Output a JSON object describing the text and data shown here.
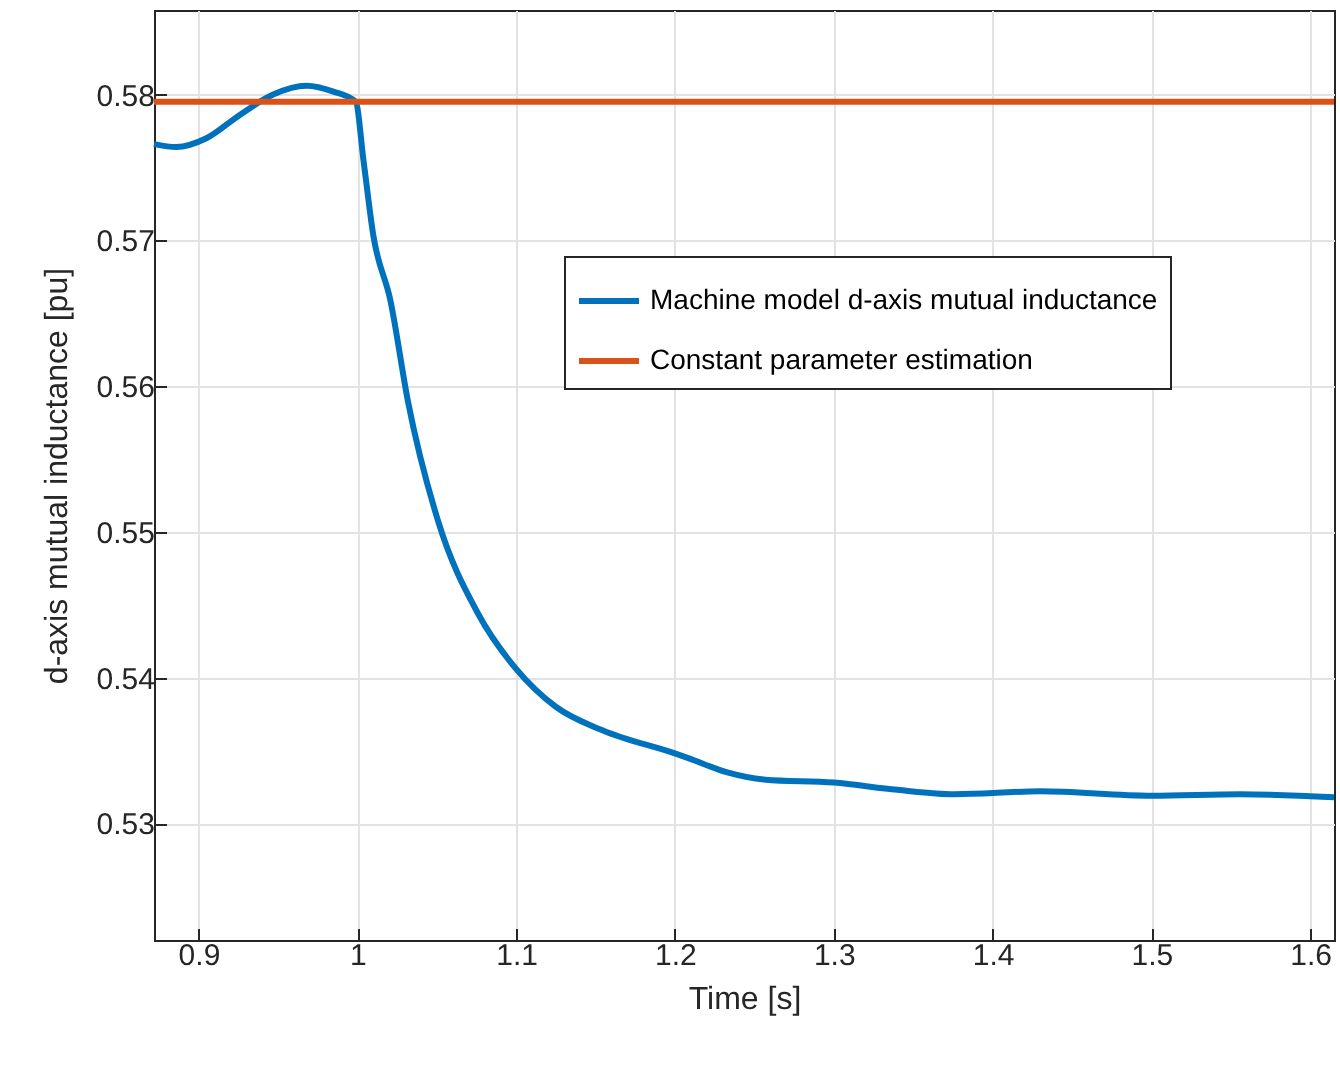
{
  "chart_data": {
    "type": "line",
    "xlabel": "Time [s]",
    "ylabel": "d-axis mutual inductance [pu]",
    "xlim": [
      0.872,
      1.615
    ],
    "ylim": [
      0.522,
      0.5858
    ],
    "xticks": [
      0.9,
      1,
      1.1,
      1.2,
      1.3,
      1.4,
      1.5,
      1.6
    ],
    "yticks": [
      0.53,
      0.54,
      0.55,
      0.56,
      0.57,
      0.58
    ],
    "grid": true,
    "legend": "top right",
    "line_style": "solid",
    "marker": "none",
    "series": [
      {
        "name": "Machine model d-axis mutual inductance",
        "color": "#0072bd",
        "x": [
          0.872,
          0.886,
          0.905,
          0.926,
          0.947,
          0.968,
          0.985,
          0.999,
          1.004,
          1.01,
          1.021,
          1.032,
          1.051,
          1.076,
          1.1,
          1.125,
          1.154,
          1.2,
          1.208,
          1.233,
          1.257,
          1.3,
          1.34,
          1.376,
          1.43,
          1.5,
          1.556,
          1.615
        ],
        "values": [
          0.5766,
          0.5764,
          0.577,
          0.5786,
          0.58,
          0.5806,
          0.5802,
          0.5795,
          0.5754,
          0.5704,
          0.5658,
          0.5589,
          0.5507,
          0.5444,
          0.5406,
          0.538,
          0.5364,
          0.5348,
          0.5345,
          0.5335,
          0.533,
          0.5328,
          0.5323,
          0.532,
          0.5322,
          0.5319,
          0.532,
          0.5318
        ]
      },
      {
        "name": "Constant parameter estimation",
        "color": "#d95319",
        "x": [
          0.872,
          1.615
        ],
        "values": [
          0.5795,
          0.5795
        ]
      }
    ]
  }
}
